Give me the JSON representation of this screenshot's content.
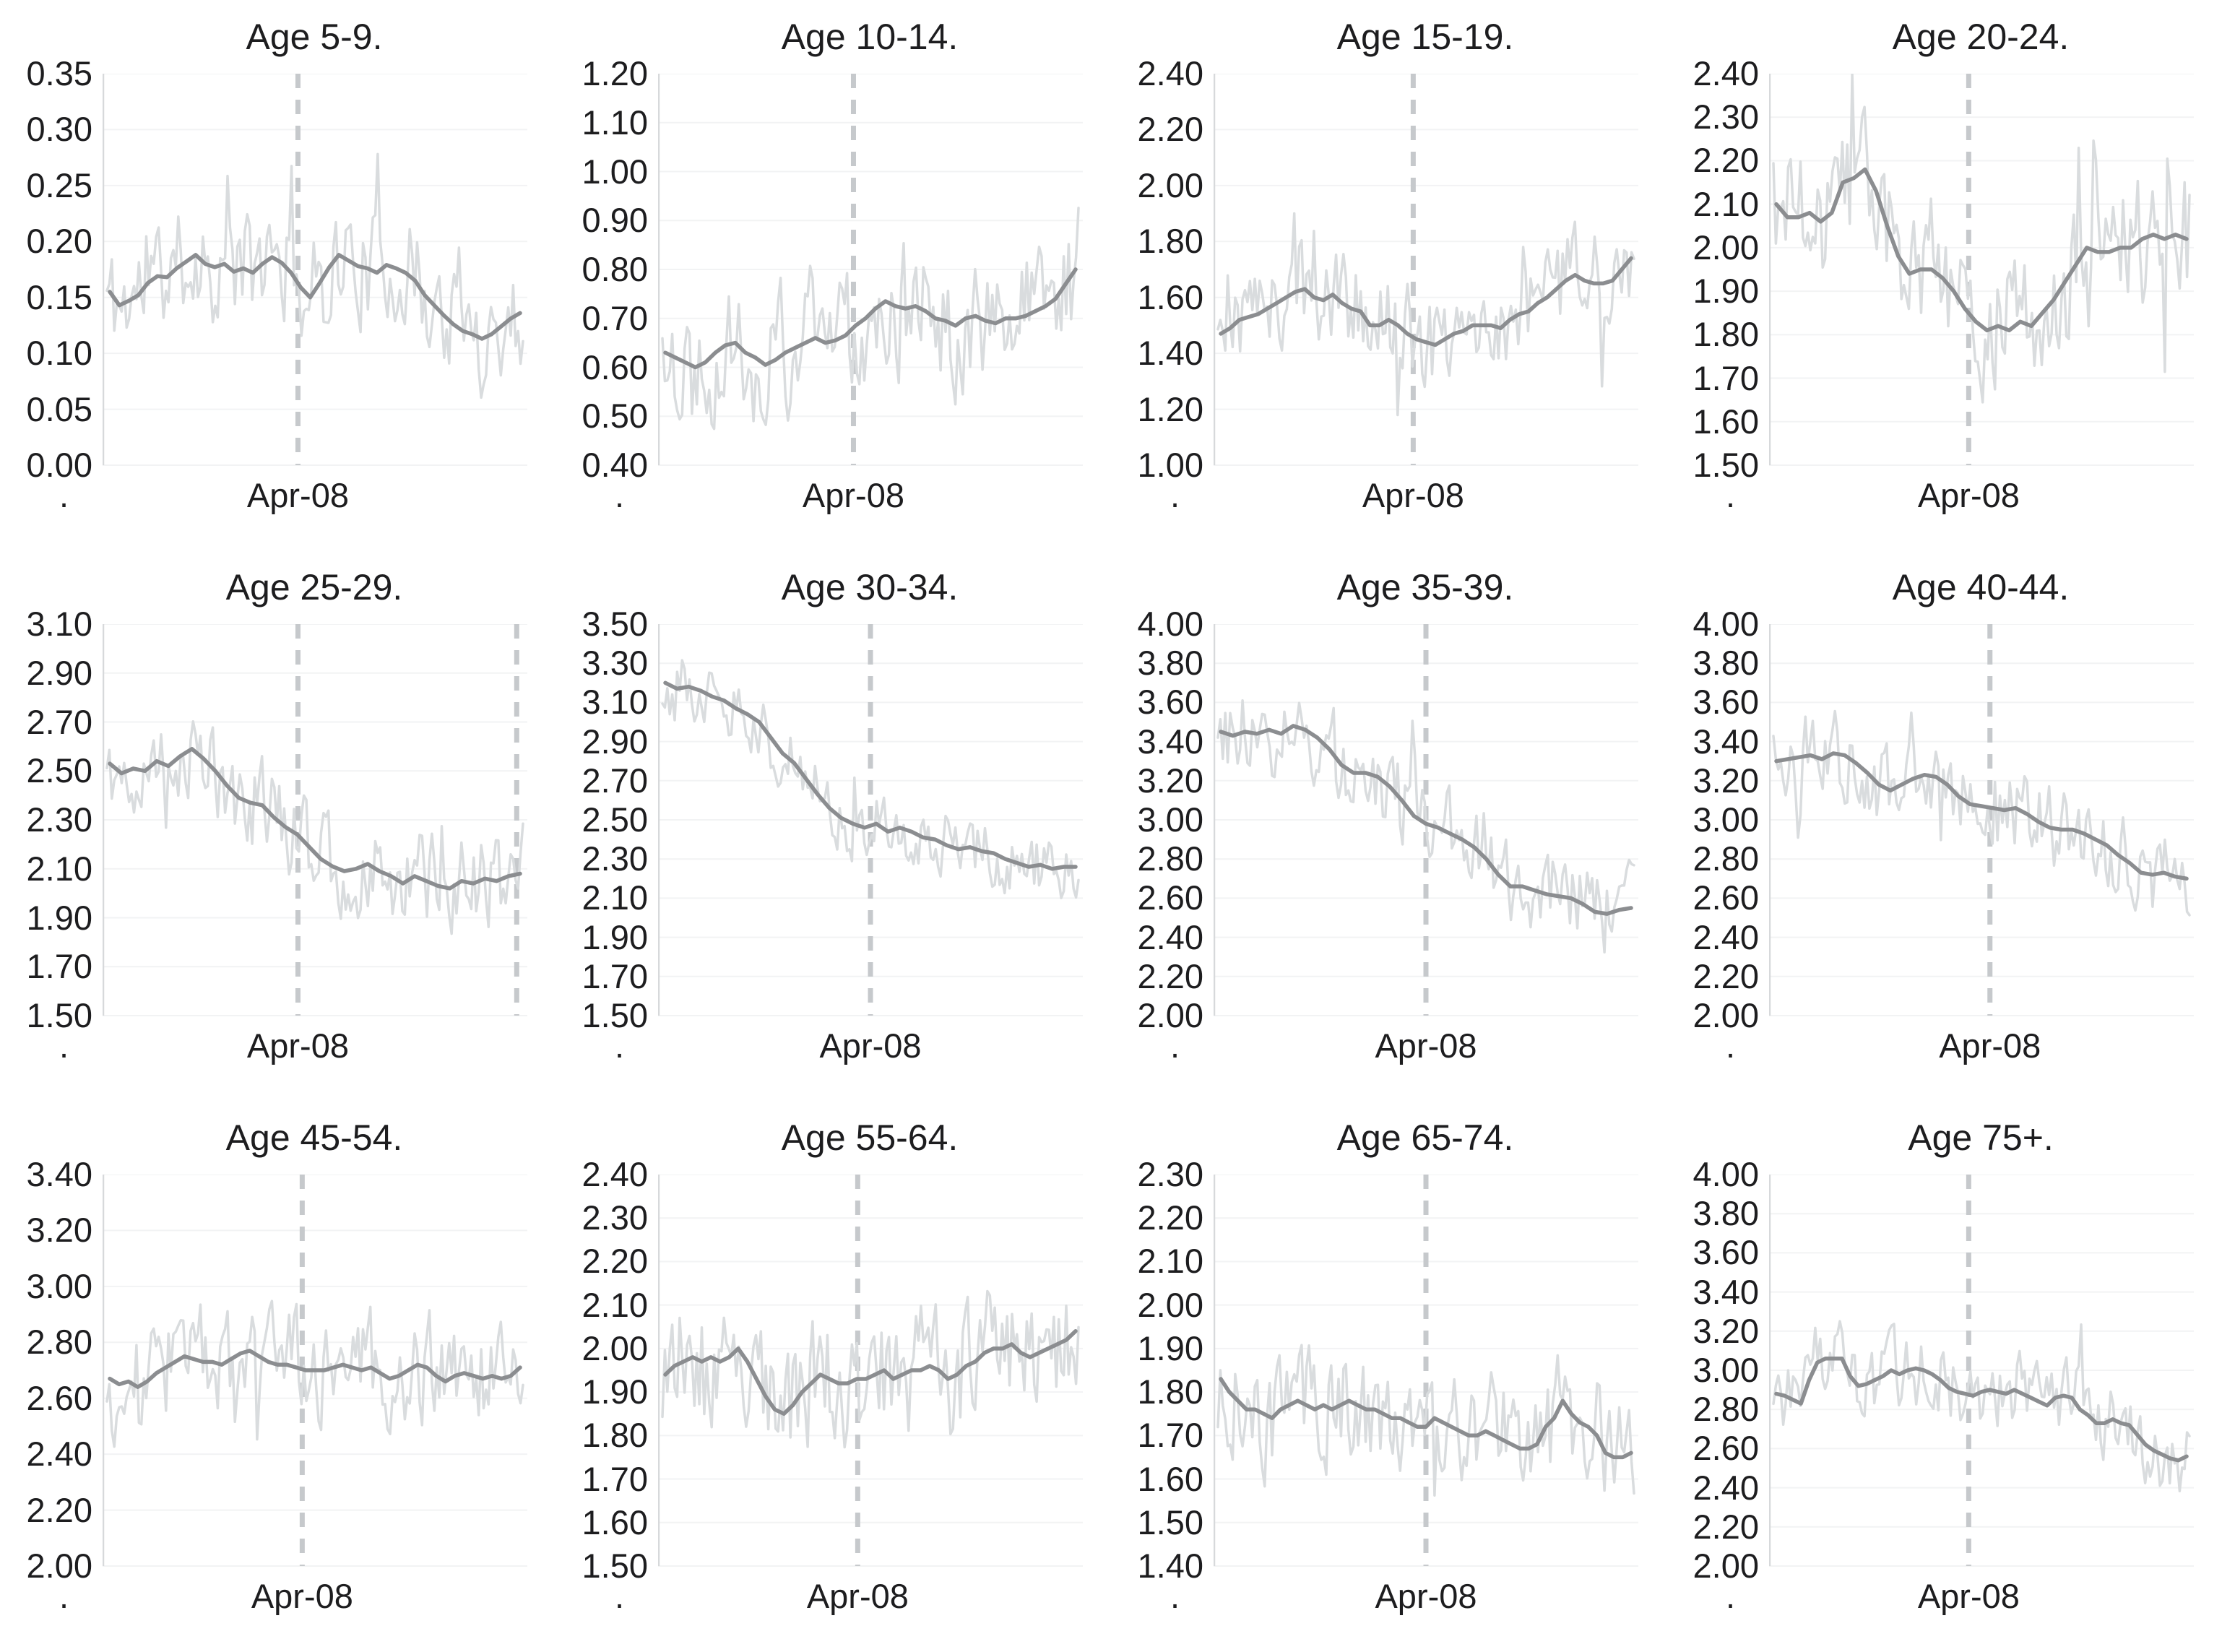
{
  "figure": {
    "background": "#ffffff",
    "grid_layout": {
      "columns": 4,
      "rows": 3
    },
    "colors": {
      "noisy_series": "#d9dcde",
      "smoothed_series": "#8b8d90",
      "event_dashed_line": "#c6c9cc",
      "gridline": "#f2f3f4",
      "axis_line": "#d7d9db",
      "text": "#1d1d1f"
    }
  },
  "chart_data": [
    {
      "type": "line",
      "title": "Age 5-9.",
      "ylim": [
        0.0,
        0.35
      ],
      "yticks": [
        "0.00",
        "0.05",
        "0.10",
        "0.15",
        "0.20",
        "0.25",
        "0.30",
        "0.35"
      ],
      "x_axis": {
        "left_label": ".",
        "tick_label": "Apr-08",
        "event_line_fraction": 0.46
      },
      "extra_vline_fractions": [],
      "grid": "horizontal-faint",
      "legend": "none",
      "series": [
        {
          "name": "weekly",
          "style": "noisy",
          "amp": 0.045,
          "seed": 11
        },
        {
          "name": "smoothed",
          "values": [
            0.155,
            0.143,
            0.147,
            0.152,
            0.163,
            0.169,
            0.168,
            0.176,
            0.182,
            0.188,
            0.18,
            0.177,
            0.18,
            0.173,
            0.176,
            0.172,
            0.18,
            0.186,
            0.181,
            0.172,
            0.159,
            0.15,
            0.163,
            0.177,
            0.188,
            0.183,
            0.178,
            0.176,
            0.172,
            0.179,
            0.176,
            0.172,
            0.165,
            0.152,
            0.143,
            0.134,
            0.126,
            0.12,
            0.117,
            0.113,
            0.117,
            0.124,
            0.131,
            0.136
          ]
        }
      ]
    },
    {
      "type": "line",
      "title": "Age 10-14.",
      "ylim": [
        0.4,
        1.2
      ],
      "yticks": [
        "0.40",
        "0.50",
        "0.60",
        "0.70",
        "0.80",
        "0.90",
        "1.00",
        "1.10",
        "1.20"
      ],
      "x_axis": {
        "left_label": ".",
        "tick_label": "Apr-08",
        "event_line_fraction": 0.46
      },
      "extra_vline_fractions": [],
      "grid": "horizontal-faint",
      "legend": "none",
      "series": [
        {
          "name": "weekly",
          "style": "noisy",
          "amp": 0.12,
          "seed": 22
        },
        {
          "name": "smoothed",
          "values": [
            0.63,
            0.62,
            0.61,
            0.6,
            0.61,
            0.63,
            0.645,
            0.65,
            0.63,
            0.62,
            0.605,
            0.615,
            0.63,
            0.64,
            0.65,
            0.66,
            0.65,
            0.655,
            0.665,
            0.685,
            0.7,
            0.72,
            0.735,
            0.725,
            0.72,
            0.725,
            0.715,
            0.7,
            0.695,
            0.685,
            0.7,
            0.705,
            0.695,
            0.69,
            0.7,
            0.7,
            0.705,
            0.715,
            0.725,
            0.74,
            0.77,
            0.8
          ]
        }
      ]
    },
    {
      "type": "line",
      "title": "Age 15-19.",
      "ylim": [
        1.0,
        2.4
      ],
      "yticks": [
        "1.00",
        "1.20",
        "1.40",
        "1.60",
        "1.80",
        "2.00",
        "2.20",
        "2.40"
      ],
      "x_axis": {
        "left_label": ".",
        "tick_label": "Apr-08",
        "event_line_fraction": 0.47
      },
      "extra_vline_fractions": [],
      "grid": "horizontal-faint",
      "legend": "none",
      "series": [
        {
          "name": "weekly",
          "style": "noisy",
          "amp": 0.16,
          "seed": 33
        },
        {
          "name": "smoothed",
          "values": [
            1.47,
            1.49,
            1.52,
            1.53,
            1.54,
            1.56,
            1.58,
            1.6,
            1.62,
            1.63,
            1.6,
            1.59,
            1.61,
            1.58,
            1.56,
            1.55,
            1.5,
            1.5,
            1.52,
            1.5,
            1.47,
            1.45,
            1.44,
            1.43,
            1.45,
            1.47,
            1.48,
            1.5,
            1.5,
            1.5,
            1.49,
            1.52,
            1.54,
            1.55,
            1.58,
            1.6,
            1.63,
            1.66,
            1.68,
            1.66,
            1.65,
            1.65,
            1.66,
            1.7,
            1.74
          ]
        }
      ]
    },
    {
      "type": "line",
      "title": "Age 20-24.",
      "ylim": [
        1.5,
        2.4
      ],
      "yticks": [
        "1.50",
        "1.60",
        "1.70",
        "1.80",
        "1.90",
        "2.00",
        "2.10",
        "2.20",
        "2.30",
        "2.40"
      ],
      "x_axis": {
        "left_label": ".",
        "tick_label": "Apr-08",
        "event_line_fraction": 0.47
      },
      "extra_vline_fractions": [],
      "grid": "horizontal-faint",
      "legend": "none",
      "series": [
        {
          "name": "weekly",
          "style": "noisy",
          "amp": 0.14,
          "seed": 44
        },
        {
          "name": "smoothed",
          "values": [
            2.1,
            2.07,
            2.07,
            2.08,
            2.06,
            2.08,
            2.15,
            2.16,
            2.18,
            2.13,
            2.05,
            1.98,
            1.94,
            1.95,
            1.95,
            1.93,
            1.9,
            1.86,
            1.83,
            1.81,
            1.82,
            1.81,
            1.83,
            1.82,
            1.85,
            1.88,
            1.92,
            1.96,
            2.0,
            1.99,
            1.99,
            2.0,
            2.0,
            2.02,
            2.03,
            2.02,
            2.03,
            2.02
          ]
        }
      ]
    },
    {
      "type": "line",
      "title": "Age 25-29.",
      "ylim": [
        1.5,
        3.1
      ],
      "yticks": [
        "1.50",
        "1.70",
        "1.90",
        "2.10",
        "2.30",
        "2.50",
        "2.70",
        "2.90",
        "3.10"
      ],
      "x_axis": {
        "left_label": ".",
        "tick_label": "Apr-08",
        "event_line_fraction": 0.46
      },
      "extra_vline_fractions": [
        0.975
      ],
      "grid": "horizontal-faint",
      "legend": "none",
      "series": [
        {
          "name": "weekly",
          "style": "noisy",
          "amp": 0.17,
          "seed": 55
        },
        {
          "name": "smoothed",
          "values": [
            2.53,
            2.49,
            2.51,
            2.5,
            2.54,
            2.52,
            2.56,
            2.59,
            2.55,
            2.5,
            2.44,
            2.39,
            2.37,
            2.36,
            2.31,
            2.27,
            2.24,
            2.19,
            2.14,
            2.11,
            2.09,
            2.1,
            2.12,
            2.09,
            2.07,
            2.04,
            2.07,
            2.05,
            2.03,
            2.02,
            2.05,
            2.04,
            2.06,
            2.05,
            2.07,
            2.08
          ]
        }
      ]
    },
    {
      "type": "line",
      "title": "Age 30-34.",
      "ylim": [
        1.5,
        3.5
      ],
      "yticks": [
        "1.50",
        "1.70",
        "1.90",
        "2.10",
        "2.30",
        "2.50",
        "2.70",
        "2.90",
        "3.10",
        "3.30",
        "3.50"
      ],
      "x_axis": {
        "left_label": ".",
        "tick_label": "Apr-08",
        "event_line_fraction": 0.5
      },
      "extra_vline_fractions": [],
      "grid": "horizontal-faint",
      "legend": "none",
      "series": [
        {
          "name": "weekly",
          "style": "noisy",
          "amp": 0.15,
          "seed": 66
        },
        {
          "name": "smoothed",
          "values": [
            3.2,
            3.17,
            3.18,
            3.16,
            3.13,
            3.11,
            3.07,
            3.04,
            3.0,
            2.92,
            2.84,
            2.79,
            2.71,
            2.63,
            2.56,
            2.51,
            2.48,
            2.46,
            2.48,
            2.44,
            2.46,
            2.44,
            2.41,
            2.4,
            2.37,
            2.35,
            2.36,
            2.34,
            2.33,
            2.3,
            2.28,
            2.26,
            2.27,
            2.25,
            2.26,
            2.26
          ]
        }
      ]
    },
    {
      "type": "line",
      "title": "Age 35-39.",
      "ylim": [
        2.0,
        4.0
      ],
      "yticks": [
        "2.00",
        "2.20",
        "2.40",
        "2.60",
        "2.80",
        "3.00",
        "3.20",
        "3.40",
        "3.60",
        "3.80",
        "4.00"
      ],
      "x_axis": {
        "left_label": ".",
        "tick_label": "Apr-08",
        "event_line_fraction": 0.5
      },
      "extra_vline_fractions": [],
      "grid": "horizontal-faint",
      "legend": "none",
      "series": [
        {
          "name": "weekly",
          "style": "noisy",
          "amp": 0.2,
          "seed": 77
        },
        {
          "name": "smoothed",
          "values": [
            3.45,
            3.43,
            3.45,
            3.44,
            3.46,
            3.44,
            3.48,
            3.46,
            3.42,
            3.36,
            3.28,
            3.24,
            3.24,
            3.22,
            3.17,
            3.1,
            3.02,
            2.98,
            2.96,
            2.93,
            2.9,
            2.86,
            2.8,
            2.72,
            2.66,
            2.66,
            2.64,
            2.62,
            2.61,
            2.6,
            2.57,
            2.53,
            2.52,
            2.54,
            2.55
          ]
        }
      ]
    },
    {
      "type": "line",
      "title": "Age 40-44.",
      "ylim": [
        2.0,
        4.0
      ],
      "yticks": [
        "2.00",
        "2.20",
        "2.40",
        "2.60",
        "2.80",
        "3.00",
        "3.20",
        "3.40",
        "3.60",
        "3.80",
        "4.00"
      ],
      "x_axis": {
        "left_label": ".",
        "tick_label": "Apr-08",
        "event_line_fraction": 0.52
      },
      "extra_vline_fractions": [],
      "grid": "horizontal-faint",
      "legend": "none",
      "series": [
        {
          "name": "weekly",
          "style": "noisy",
          "amp": 0.19,
          "seed": 88
        },
        {
          "name": "smoothed",
          "values": [
            3.3,
            3.31,
            3.32,
            3.33,
            3.31,
            3.34,
            3.33,
            3.29,
            3.24,
            3.18,
            3.15,
            3.18,
            3.21,
            3.23,
            3.22,
            3.18,
            3.12,
            3.08,
            3.07,
            3.06,
            3.05,
            3.06,
            3.03,
            2.99,
            2.96,
            2.95,
            2.95,
            2.93,
            2.9,
            2.87,
            2.82,
            2.78,
            2.73,
            2.72,
            2.73,
            2.71,
            2.7
          ]
        }
      ]
    },
    {
      "type": "line",
      "title": "Age 45-54.",
      "ylim": [
        2.0,
        3.4
      ],
      "yticks": [
        "2.00",
        "2.20",
        "2.40",
        "2.60",
        "2.80",
        "3.00",
        "3.20",
        "3.40"
      ],
      "x_axis": {
        "left_label": ".",
        "tick_label": "Apr-08",
        "event_line_fraction": 0.47
      },
      "extra_vline_fractions": [],
      "grid": "horizontal-faint",
      "legend": "none",
      "series": [
        {
          "name": "weekly",
          "style": "noisy",
          "amp": 0.17,
          "seed": 99
        },
        {
          "name": "smoothed",
          "values": [
            2.67,
            2.65,
            2.66,
            2.64,
            2.66,
            2.69,
            2.71,
            2.73,
            2.75,
            2.74,
            2.73,
            2.73,
            2.72,
            2.74,
            2.76,
            2.77,
            2.75,
            2.73,
            2.72,
            2.72,
            2.71,
            2.7,
            2.7,
            2.7,
            2.71,
            2.72,
            2.71,
            2.7,
            2.71,
            2.69,
            2.67,
            2.68,
            2.7,
            2.72,
            2.71,
            2.68,
            2.66,
            2.68,
            2.69,
            2.68,
            2.67,
            2.68,
            2.67,
            2.68,
            2.71
          ]
        }
      ]
    },
    {
      "type": "line",
      "title": "Age 55-64.",
      "ylim": [
        1.5,
        2.4
      ],
      "yticks": [
        "1.50",
        "1.60",
        "1.70",
        "1.80",
        "1.90",
        "2.00",
        "2.10",
        "2.20",
        "2.30",
        "2.40"
      ],
      "x_axis": {
        "left_label": ".",
        "tick_label": "Apr-08",
        "event_line_fraction": 0.47
      },
      "extra_vline_fractions": [],
      "grid": "horizontal-faint",
      "legend": "none",
      "series": [
        {
          "name": "weekly",
          "style": "noisy",
          "amp": 0.13,
          "seed": 110
        },
        {
          "name": "smoothed",
          "values": [
            1.94,
            1.96,
            1.97,
            1.98,
            1.97,
            1.98,
            1.97,
            1.98,
            2.0,
            1.97,
            1.93,
            1.89,
            1.86,
            1.85,
            1.87,
            1.9,
            1.92,
            1.94,
            1.93,
            1.92,
            1.92,
            1.93,
            1.93,
            1.94,
            1.95,
            1.93,
            1.94,
            1.95,
            1.95,
            1.96,
            1.95,
            1.93,
            1.94,
            1.96,
            1.97,
            1.99,
            2.0,
            2.0,
            2.01,
            1.99,
            1.98,
            1.99,
            2.0,
            2.01,
            2.02,
            2.04
          ]
        }
      ]
    },
    {
      "type": "line",
      "title": "Age 65-74.",
      "ylim": [
        1.4,
        2.3
      ],
      "yticks": [
        "1.40",
        "1.50",
        "1.60",
        "1.70",
        "1.80",
        "1.90",
        "2.00",
        "2.10",
        "2.20",
        "2.30"
      ],
      "x_axis": {
        "left_label": ".",
        "tick_label": "Apr-08",
        "event_line_fraction": 0.5
      },
      "extra_vline_fractions": [],
      "grid": "horizontal-faint",
      "legend": "none",
      "series": [
        {
          "name": "weekly",
          "style": "noisy",
          "amp": 0.12,
          "seed": 121
        },
        {
          "name": "smoothed",
          "values": [
            1.83,
            1.8,
            1.78,
            1.76,
            1.76,
            1.75,
            1.74,
            1.76,
            1.77,
            1.78,
            1.77,
            1.76,
            1.77,
            1.76,
            1.77,
            1.78,
            1.77,
            1.76,
            1.76,
            1.75,
            1.74,
            1.74,
            1.73,
            1.72,
            1.72,
            1.74,
            1.73,
            1.72,
            1.71,
            1.7,
            1.7,
            1.71,
            1.7,
            1.69,
            1.68,
            1.67,
            1.67,
            1.68,
            1.72,
            1.74,
            1.78,
            1.75,
            1.73,
            1.72,
            1.7,
            1.66,
            1.65,
            1.65,
            1.66
          ]
        }
      ]
    },
    {
      "type": "line",
      "title": "Age 75+.",
      "ylim": [
        2.0,
        4.0
      ],
      "yticks": [
        "2.00",
        "2.20",
        "2.40",
        "2.60",
        "2.80",
        "3.00",
        "3.20",
        "3.40",
        "3.60",
        "3.80",
        "4.00"
      ],
      "x_axis": {
        "left_label": ".",
        "tick_label": "Apr-08",
        "event_line_fraction": 0.47
      },
      "extra_vline_fractions": [],
      "grid": "horizontal-faint",
      "legend": "none",
      "series": [
        {
          "name": "weekly",
          "style": "noisy",
          "amp": 0.17,
          "seed": 132
        },
        {
          "name": "smoothed",
          "values": [
            2.88,
            2.87,
            2.85,
            2.83,
            2.95,
            3.04,
            3.06,
            3.06,
            3.06,
            2.97,
            2.92,
            2.93,
            2.95,
            2.97,
            3.0,
            2.98,
            3.0,
            3.01,
            3.0,
            2.98,
            2.95,
            2.91,
            2.89,
            2.88,
            2.87,
            2.89,
            2.9,
            2.89,
            2.88,
            2.9,
            2.88,
            2.86,
            2.84,
            2.82,
            2.86,
            2.87,
            2.86,
            2.8,
            2.77,
            2.73,
            2.73,
            2.75,
            2.73,
            2.72,
            2.67,
            2.62,
            2.59,
            2.57,
            2.55,
            2.54,
            2.56
          ]
        }
      ]
    }
  ]
}
